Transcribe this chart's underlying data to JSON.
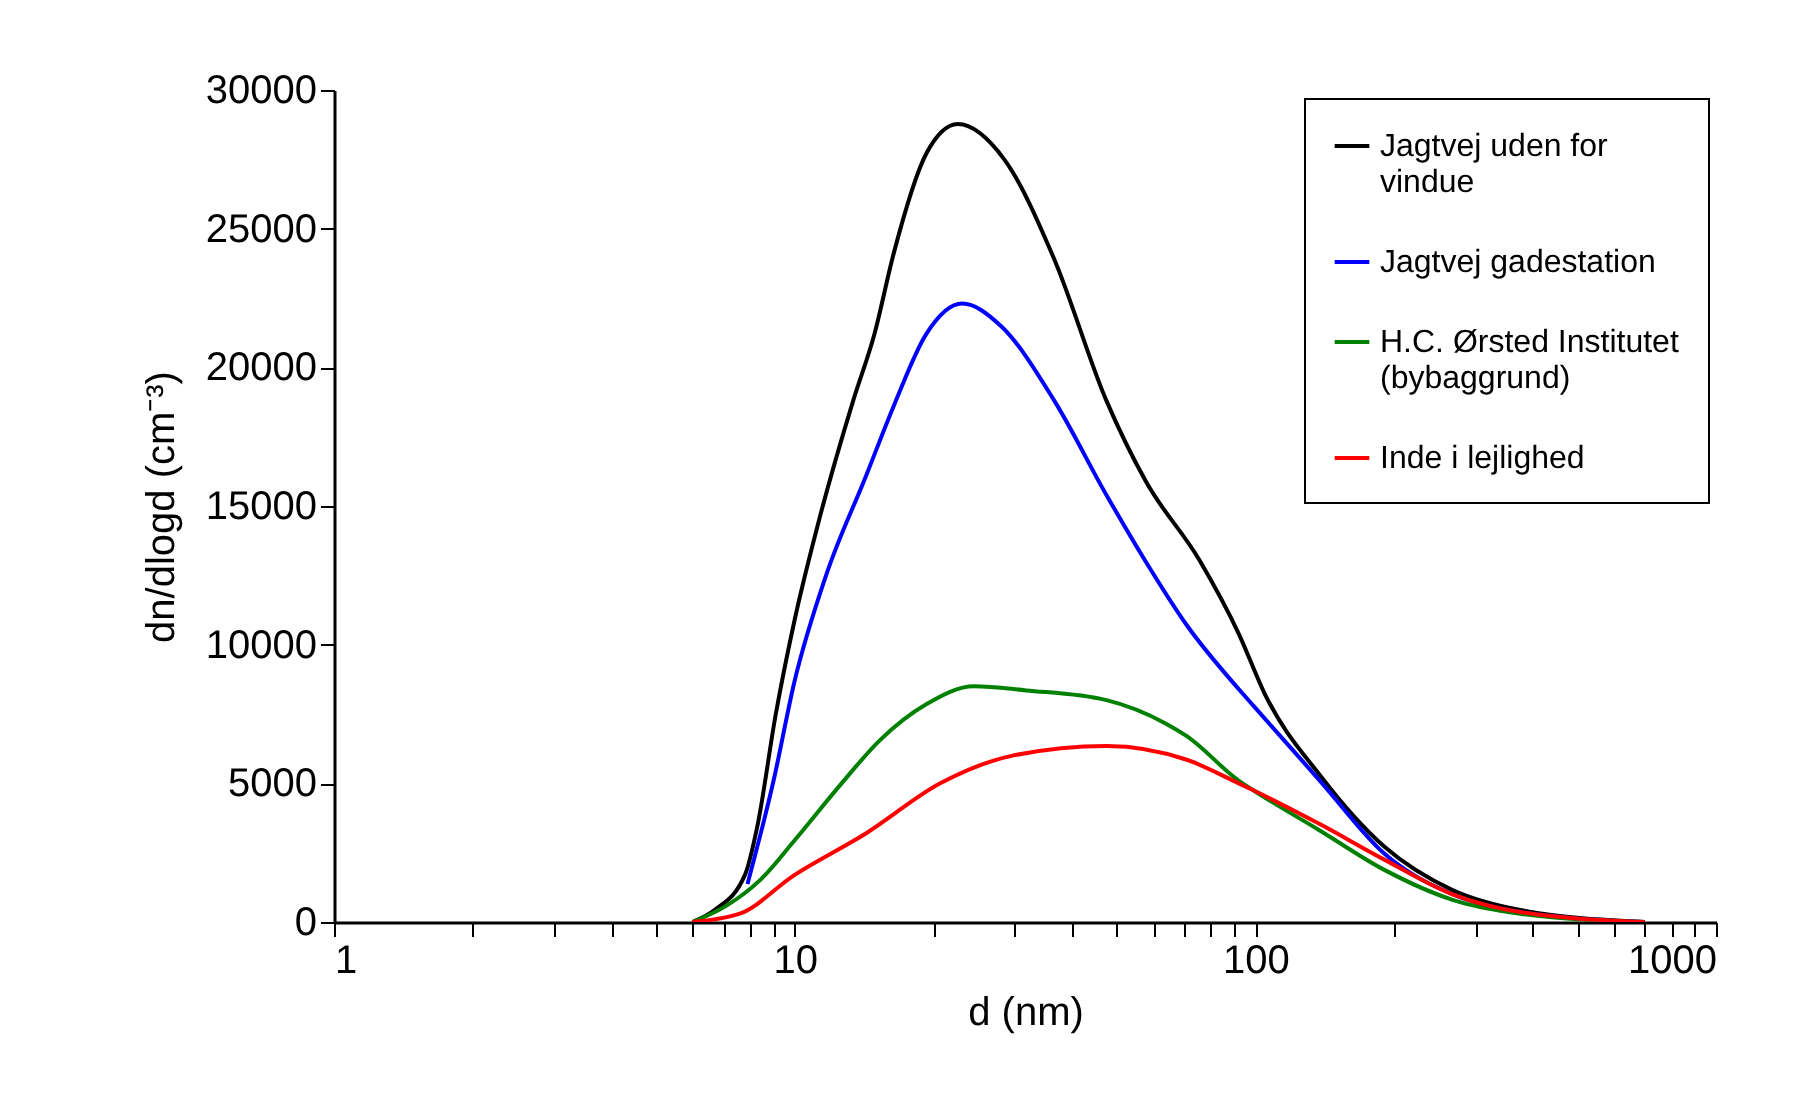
{
  "chart_data": {
    "type": "line",
    "xlabel": "d (nm)",
    "ylabel": "dn/dlogd (cm⁻³)",
    "log": "x",
    "xlim": [
      1,
      1000
    ],
    "ylim": [
      0,
      30000
    ],
    "xticks": [
      1,
      {
        "value": 2,
        "label": null
      },
      {
        "value": 3,
        "label": null
      },
      {
        "value": 4,
        "label": null
      },
      {
        "value": 5,
        "label": null
      },
      {
        "value": 6,
        "label": null
      },
      {
        "value": 7,
        "label": null
      },
      {
        "value": 8,
        "label": null
      },
      {
        "value": 9,
        "label": null
      },
      10,
      {
        "value": 20,
        "label": null
      },
      {
        "value": 30,
        "label": null
      },
      {
        "value": 40,
        "label": null
      },
      {
        "value": 50,
        "label": null
      },
      {
        "value": 60,
        "label": null
      },
      {
        "value": 70,
        "label": null
      },
      {
        "value": 80,
        "label": null
      },
      {
        "value": 90,
        "label": null
      },
      100,
      {
        "value": 200,
        "label": null
      },
      {
        "value": 300,
        "label": null
      },
      {
        "value": 400,
        "label": null
      },
      {
        "value": 500,
        "label": null
      },
      {
        "value": 600,
        "label": null
      },
      {
        "value": 700,
        "label": null
      },
      {
        "value": 800,
        "label": null
      },
      {
        "value": 900,
        "label": null
      },
      1000
    ],
    "yticks": [
      0,
      5000,
      10000,
      15000,
      20000,
      25000,
      30000
    ],
    "grid": false,
    "legend": "top right",
    "marker": "none",
    "line_style": "solid",
    "series": [
      {
        "name": "Jagtvej uden for vindue",
        "color": "#000000",
        "x": [
          6,
          6.7,
          7.8,
          8.3,
          9.1,
          10,
          11.3,
          13.4,
          14.9,
          16.4,
          19.3,
          22.6,
          28.5,
          36.6,
          47.5,
          57.8,
          75.6,
          92,
          105,
          138,
          191,
          268,
          376,
          700
        ],
        "values": [
          0,
          430,
          1700,
          3460,
          7500,
          10900,
          14500,
          18800,
          21200,
          24100,
          27700,
          28770,
          27500,
          23900,
          18800,
          15900,
          13050,
          10400,
          8200,
          5300,
          2700,
          1150,
          430,
          0
        ]
      },
      {
        "name": "Jagtvej gadestation",
        "color": "#0000ff",
        "x": [
          7.9,
          9,
          10,
          11.7,
          14.3,
          16.4,
          19.3,
          23.1,
          28,
          36.6,
          47.5,
          57.8,
          71,
          92,
          99,
          138,
          191,
          268,
          376,
          700
        ],
        "values": [
          1370,
          5100,
          8700,
          12500,
          16100,
          18600,
          21200,
          22300,
          21500,
          18800,
          15400,
          13000,
          10700,
          8400,
          7800,
          5100,
          2450,
          1000,
          360,
          0
        ]
      },
      {
        "name": "H.C. Ørsted Institutet (bybaggrund)",
        "color": "#008000",
        "x": [
          6,
          7.1,
          8.4,
          10,
          12.5,
          15.3,
          19.3,
          24.5,
          31.8,
          47.5,
          64,
          71,
          92,
          99,
          138,
          191,
          268,
          376,
          700
        ],
        "values": [
          0,
          580,
          1500,
          2950,
          4900,
          6550,
          7850,
          8500,
          8350,
          8000,
          7150,
          6700,
          5100,
          4750,
          3300,
          1870,
          800,
          300,
          0
        ]
      },
      {
        "name": "Inde i lejlighed",
        "color": "#ff0000",
        "x": [
          6,
          7.6,
          10,
          14.3,
          20.7,
          29.7,
          47.5,
          71,
          92,
          99,
          138,
          191,
          268,
          376,
          700
        ],
        "values": [
          0,
          300,
          1700,
          3200,
          5000,
          6000,
          6350,
          5850,
          5000,
          4750,
          3530,
          2240,
          1000,
          360,
          0
        ]
      }
    ]
  }
}
